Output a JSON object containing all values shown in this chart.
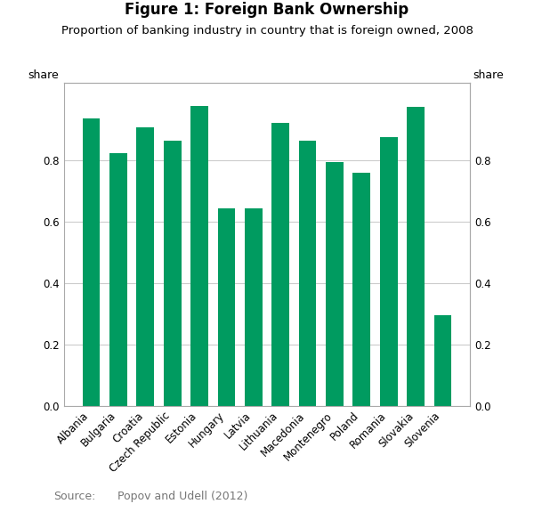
{
  "title": "Figure 1: Foreign Bank Ownership",
  "subtitle": "Proportion of banking industry in country that is foreign owned, 2008",
  "categories": [
    "Albania",
    "Bulgaria",
    "Croatia",
    "Czech Republic",
    "Estonia",
    "Hungary",
    "Latvia",
    "Lithuania",
    "Macedonia",
    "Montenegro",
    "Poland",
    "Romania",
    "Slovakia",
    "Slovenia"
  ],
  "values": [
    0.935,
    0.823,
    0.907,
    0.862,
    0.975,
    0.643,
    0.641,
    0.92,
    0.862,
    0.793,
    0.757,
    0.875,
    0.972,
    0.295
  ],
  "bar_color": "#009B60",
  "ylabel_left": "share",
  "ylabel_right": "share",
  "ylim": [
    0.0,
    1.05
  ],
  "yticks": [
    0.0,
    0.2,
    0.4,
    0.6,
    0.8
  ],
  "source_label": "Source:",
  "source_text": "Popov and Udell (2012)",
  "background_color": "#ffffff",
  "grid_color": "#cccccc",
  "spine_color": "#aaaaaa",
  "title_fontsize": 12,
  "subtitle_fontsize": 9.5,
  "tick_fontsize": 8.5,
  "share_fontsize": 9,
  "source_fontsize": 9,
  "source_color": "#777777"
}
